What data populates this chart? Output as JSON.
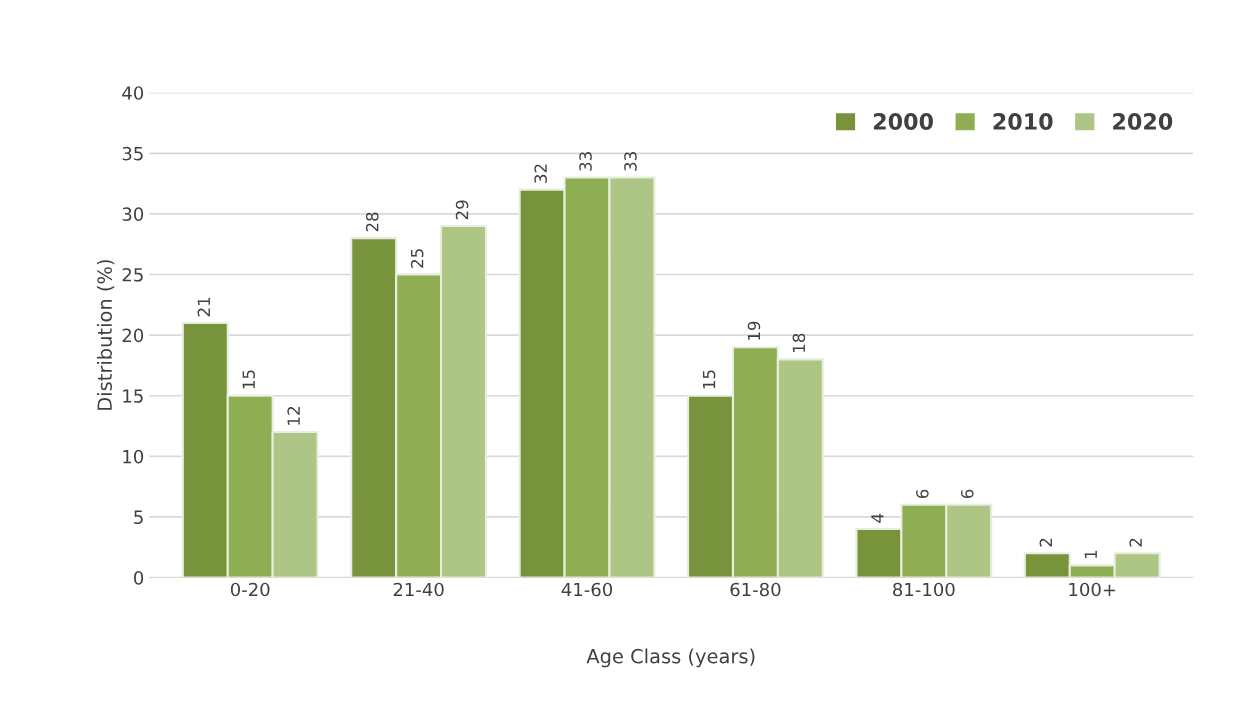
{
  "chart_data": {
    "type": "bar",
    "xlabel": "Age Class (years)",
    "ylabel": "Distribution (%)",
    "categories": [
      "0-20",
      "21-40",
      "41-60",
      "61-80",
      "81-100",
      "100+"
    ],
    "series": [
      {
        "name": "2000",
        "color": "#77933c",
        "values": [
          21,
          28,
          32,
          15,
          4,
          2
        ]
      },
      {
        "name": "2010",
        "color": "#8fae54",
        "values": [
          15,
          25,
          33,
          19,
          6,
          1
        ]
      },
      {
        "name": "2020",
        "color": "#adc585",
        "values": [
          12,
          29,
          33,
          18,
          6,
          2
        ]
      }
    ],
    "ylim": [
      0,
      40
    ],
    "yticks": [
      0,
      5,
      10,
      15,
      20,
      25,
      30,
      35,
      40
    ],
    "grid": "y",
    "legend": "top right",
    "data_labels": true
  }
}
